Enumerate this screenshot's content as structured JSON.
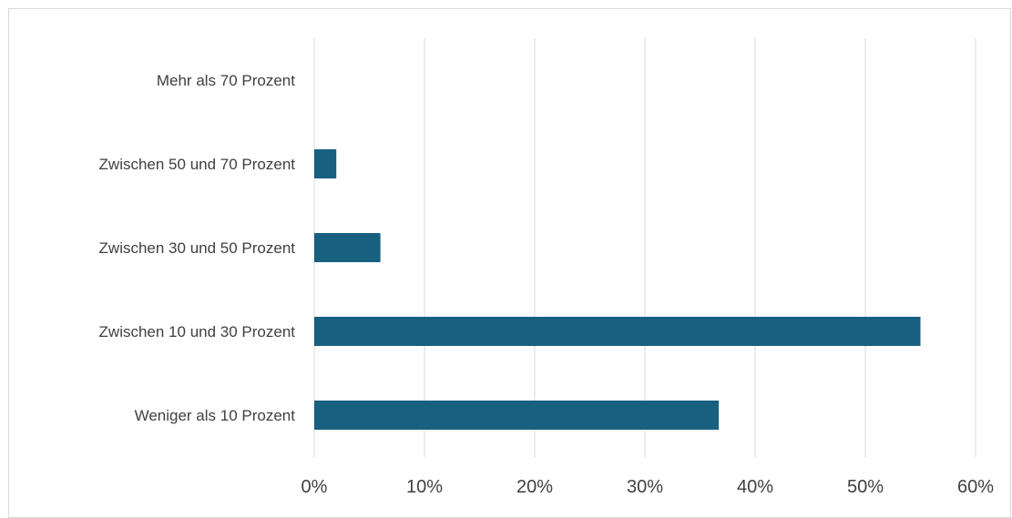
{
  "chart_data": {
    "type": "bar",
    "orientation": "horizontal",
    "title": "",
    "xlabel": "",
    "ylabel": "",
    "categories": [
      "Mehr als 70 Prozent",
      "Zwischen 50 und 70 Prozent",
      "Zwischen 30 und 50 Prozent",
      "Zwischen 10 und 30 Prozent",
      "Weniger als 10 Prozent"
    ],
    "values": [
      0,
      2,
      6,
      55,
      36.7
    ],
    "xlim": [
      0,
      60
    ],
    "x_ticks": [
      0,
      10,
      20,
      30,
      40,
      50,
      60
    ],
    "x_tick_labels": [
      "0%",
      "10%",
      "20%",
      "30%",
      "40%",
      "50%",
      "60%"
    ],
    "grid": "vertical",
    "legend": "none",
    "bar_color": "#17607f",
    "grid_color": "#d9d9d9"
  }
}
